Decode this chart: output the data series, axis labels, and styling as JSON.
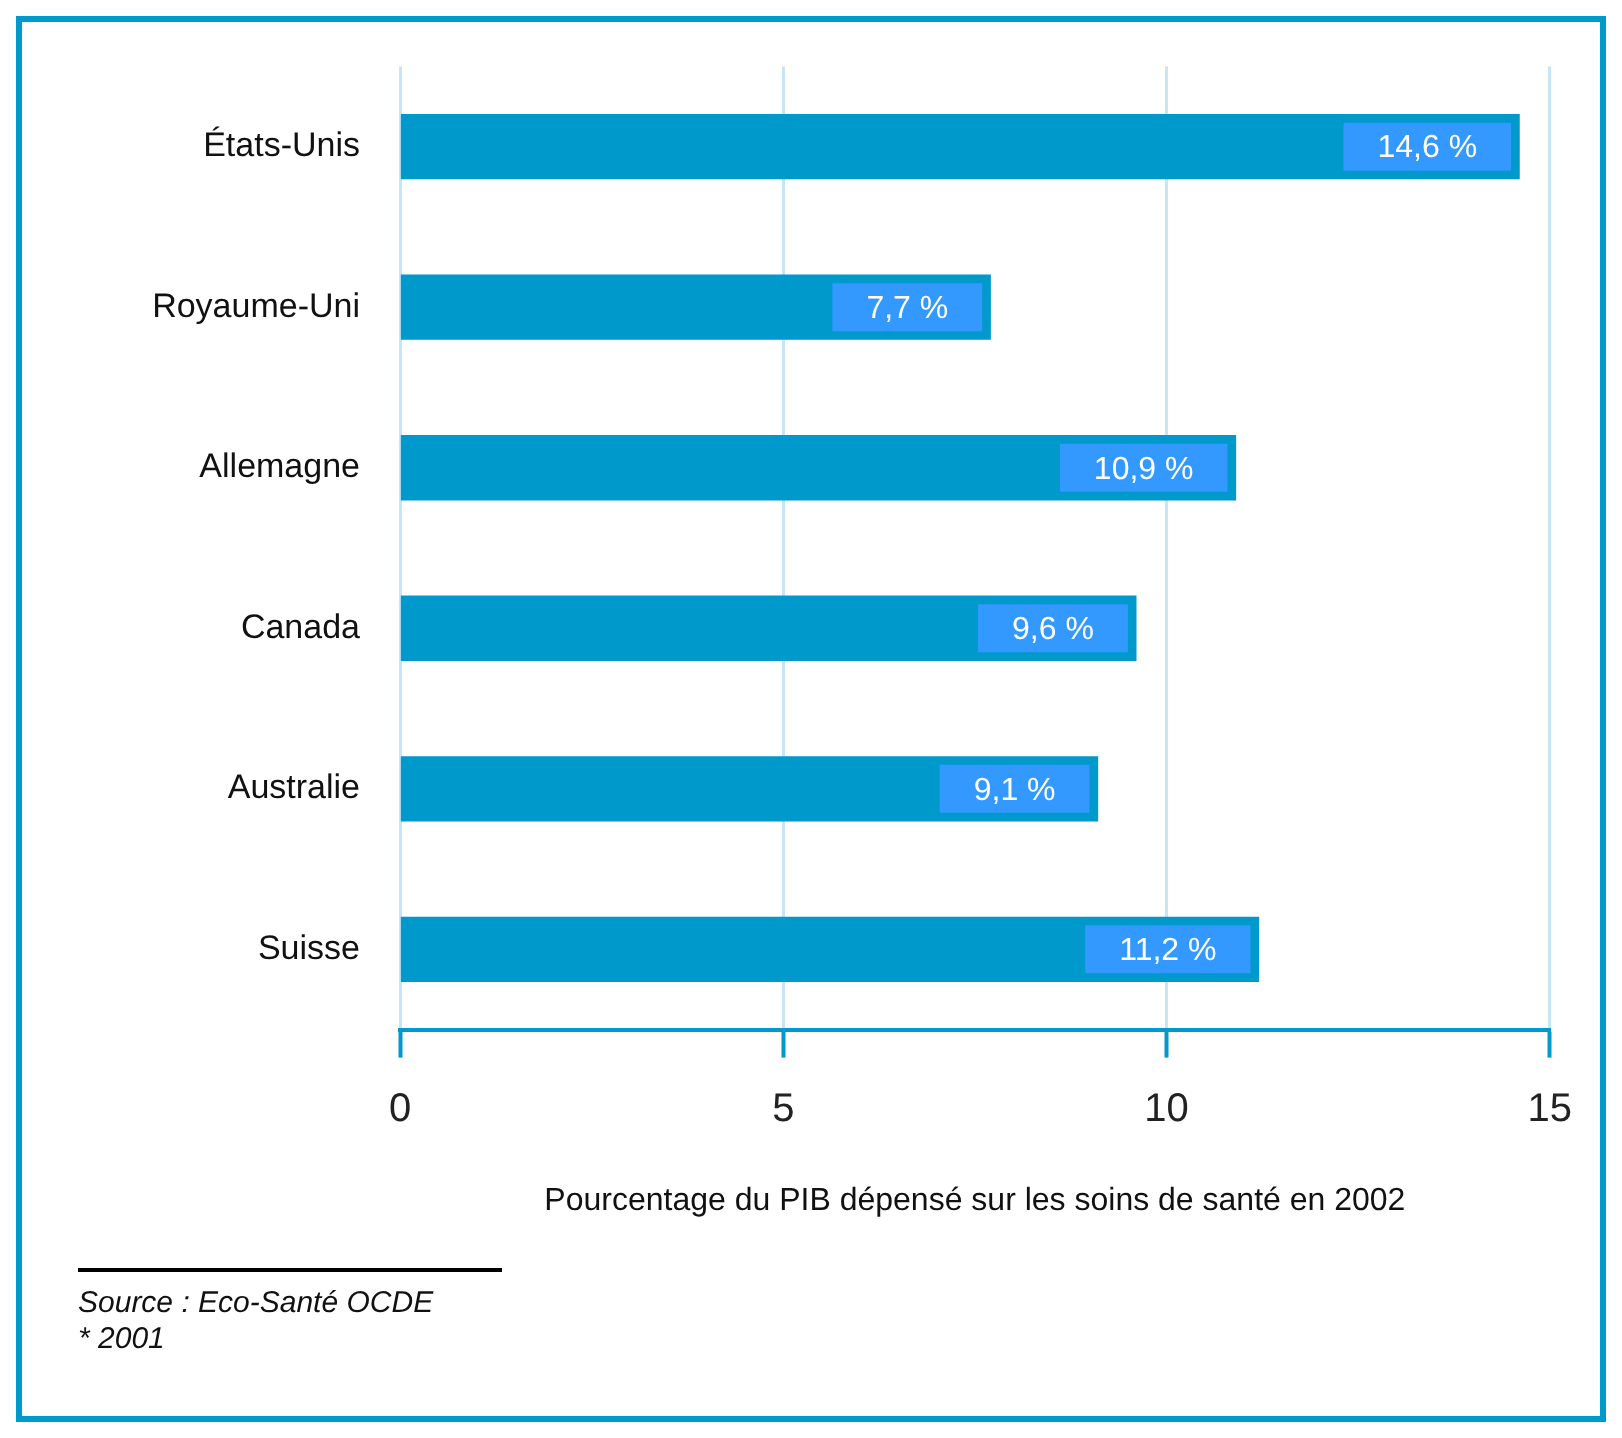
{
  "chart_data": {
    "type": "bar",
    "orientation": "horizontal",
    "xlabel": "Pourcentage du PIB dépensé sur les soins de santé en 2002",
    "categories": [
      "États-Unis",
      "Royaume-Uni",
      "Allemagne",
      "Canada",
      "Australie",
      "Suisse"
    ],
    "values": [
      14.6,
      7.7,
      10.9,
      9.6,
      9.1,
      11.2
    ],
    "value_labels": [
      "14,6 %",
      "7,7 %",
      "10,9 %",
      "9,6 %",
      "9,1 %",
      "11,2 %"
    ],
    "color": "#0099cc",
    "xlim": [
      0,
      15
    ],
    "xticks": [
      0,
      5,
      10,
      15
    ],
    "grid": "x",
    "annotations": [
      "Source : Eco-Santé OCDE",
      "* 2001"
    ]
  }
}
